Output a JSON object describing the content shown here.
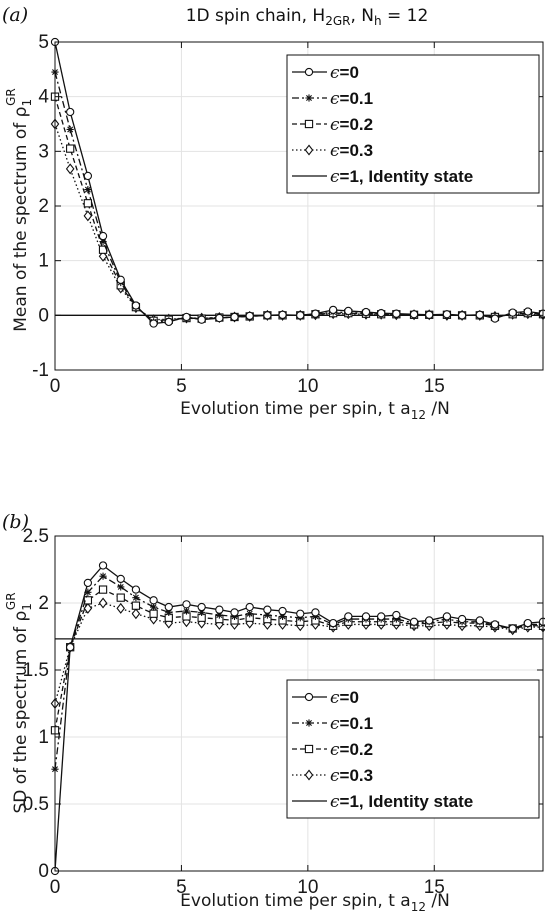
{
  "figure": {
    "panel_a_label": "(a)",
    "panel_b_label": "(b)"
  },
  "chart_data": [
    {
      "type": "line",
      "title": "1D spin chain, H_2GR, N_h = 12",
      "xlabel": "Evolution time per spin, t a_12 /N",
      "ylabel": "Mean of the spectrum of ρ_1^GR",
      "xlim": [
        0,
        19.3
      ],
      "ylim": [
        -1,
        5
      ],
      "xticks": [
        0,
        5,
        10,
        15
      ],
      "yticks": [
        -1,
        0,
        1,
        2,
        3,
        4,
        5
      ],
      "grid": true,
      "legend": "top-right",
      "series": [
        {
          "name": "ϵ=0",
          "marker": "circle",
          "dash": "solid",
          "x": [
            0,
            0.6,
            1.3,
            1.9,
            2.6,
            3.2,
            3.9,
            4.5,
            5.2,
            5.8,
            6.5,
            7.1,
            7.7,
            8.4,
            9.0,
            9.7,
            10.3,
            11.0,
            11.6,
            12.3,
            12.9,
            13.5,
            14.2,
            14.8,
            15.5,
            16.1,
            16.8,
            17.4,
            18.1,
            18.7,
            19.3
          ],
          "y": [
            5.0,
            3.72,
            2.55,
            1.45,
            0.65,
            0.18,
            -0.15,
            -0.12,
            -0.03,
            -0.08,
            -0.05,
            -0.03,
            -0.01,
            0.0,
            0.01,
            0.0,
            0.03,
            0.1,
            0.08,
            0.06,
            0.04,
            0.03,
            0.02,
            0.01,
            0.02,
            0.0,
            0.01,
            -0.06,
            0.05,
            0.07,
            0.03
          ]
        },
        {
          "name": "ϵ=0.1",
          "marker": "star",
          "dash": "dashdot",
          "x": [
            0,
            0.6,
            1.3,
            1.9,
            2.6,
            3.2,
            3.9,
            4.5,
            5.2,
            5.8,
            6.5,
            7.1,
            7.7,
            8.4,
            9.0,
            9.7,
            10.3,
            11.0,
            11.6,
            12.3,
            12.9,
            13.5,
            14.2,
            14.8,
            15.5,
            16.1,
            16.8,
            17.4,
            18.1,
            18.7,
            19.3
          ],
          "y": [
            4.45,
            3.4,
            2.3,
            1.35,
            0.6,
            0.16,
            -0.12,
            -0.1,
            -0.05,
            -0.07,
            -0.05,
            -0.03,
            -0.02,
            0.0,
            0.0,
            0.0,
            0.02,
            0.06,
            0.05,
            0.04,
            0.03,
            0.02,
            0.01,
            0.01,
            0.01,
            0.0,
            0.0,
            -0.04,
            0.03,
            0.05,
            0.02
          ]
        },
        {
          "name": "ϵ=0.2",
          "marker": "square",
          "dash": "dashed",
          "x": [
            0,
            0.6,
            1.3,
            1.9,
            2.6,
            3.2,
            3.9,
            4.5,
            5.2,
            5.8,
            6.5,
            7.1,
            7.7,
            8.4,
            9.0,
            9.7,
            10.3,
            11.0,
            11.6,
            12.3,
            12.9,
            13.5,
            14.2,
            14.8,
            15.5,
            16.1,
            16.8,
            17.4,
            18.1,
            18.7,
            19.3
          ],
          "y": [
            4.0,
            3.05,
            2.05,
            1.2,
            0.55,
            0.15,
            -0.1,
            -0.08,
            -0.05,
            -0.06,
            -0.04,
            -0.03,
            -0.02,
            0.0,
            0.0,
            0.0,
            0.02,
            0.04,
            0.04,
            0.03,
            0.02,
            0.02,
            0.01,
            0.01,
            0.01,
            0.0,
            0.0,
            -0.03,
            0.02,
            0.04,
            0.02
          ]
        },
        {
          "name": "ϵ=0.3",
          "marker": "diamond",
          "dash": "dotted",
          "x": [
            0,
            0.6,
            1.3,
            1.9,
            2.6,
            3.2,
            3.9,
            4.5,
            5.2,
            5.8,
            6.5,
            7.1,
            7.7,
            8.4,
            9.0,
            9.7,
            10.3,
            11.0,
            11.6,
            12.3,
            12.9,
            13.5,
            14.2,
            14.8,
            15.5,
            16.1,
            16.8,
            17.4,
            18.1,
            18.7,
            19.3
          ],
          "y": [
            3.5,
            2.68,
            1.82,
            1.08,
            0.5,
            0.14,
            -0.08,
            -0.07,
            -0.05,
            -0.05,
            -0.04,
            -0.03,
            -0.02,
            0.0,
            0.0,
            0.0,
            0.01,
            0.03,
            0.03,
            0.02,
            0.02,
            0.01,
            0.01,
            0.01,
            0.0,
            0.0,
            0.0,
            -0.02,
            0.02,
            0.03,
            0.01
          ]
        },
        {
          "name": "ϵ=1, Identity state",
          "marker": "none",
          "dash": "solid",
          "x": [
            0,
            19.3
          ],
          "y": [
            0,
            0
          ]
        }
      ]
    },
    {
      "type": "line",
      "title": "",
      "xlabel": "Evolution time per spin, t a_12 /N",
      "ylabel": "SD of the spectrum of ρ_1^GR",
      "xlim": [
        0,
        19.3
      ],
      "ylim": [
        0,
        2.5
      ],
      "xticks": [
        0,
        5,
        10,
        15
      ],
      "yticks": [
        0,
        0.5,
        1,
        1.5,
        2,
        2.5
      ],
      "grid": true,
      "legend": "lower-right",
      "series": [
        {
          "name": "ϵ=0",
          "marker": "circle",
          "dash": "solid",
          "x": [
            0,
            0.6,
            1.3,
            1.9,
            2.6,
            3.2,
            3.9,
            4.5,
            5.2,
            5.8,
            6.5,
            7.1,
            7.7,
            8.4,
            9.0,
            9.7,
            10.3,
            11.0,
            11.6,
            12.3,
            12.9,
            13.5,
            14.2,
            14.8,
            15.5,
            16.1,
            16.8,
            17.4,
            18.1,
            18.7,
            19.3
          ],
          "y": [
            0.0,
            1.67,
            2.15,
            2.28,
            2.18,
            2.1,
            2.02,
            1.97,
            1.99,
            1.97,
            1.95,
            1.93,
            1.97,
            1.95,
            1.94,
            1.92,
            1.93,
            1.85,
            1.9,
            1.9,
            1.9,
            1.91,
            1.86,
            1.87,
            1.9,
            1.88,
            1.87,
            1.84,
            1.81,
            1.85,
            1.86
          ]
        },
        {
          "name": "ϵ=0.1",
          "marker": "star",
          "dash": "dashdot",
          "x": [
            0,
            0.6,
            1.3,
            1.9,
            2.6,
            3.2,
            3.9,
            4.5,
            5.2,
            5.8,
            6.5,
            7.1,
            7.7,
            8.4,
            9.0,
            9.7,
            10.3,
            11.0,
            11.6,
            12.3,
            12.9,
            13.5,
            14.2,
            14.8,
            15.5,
            16.1,
            16.8,
            17.4,
            18.1,
            18.7,
            19.3
          ],
          "y": [
            0.76,
            1.67,
            2.08,
            2.2,
            2.12,
            2.04,
            1.97,
            1.93,
            1.94,
            1.93,
            1.91,
            1.9,
            1.92,
            1.91,
            1.9,
            1.89,
            1.9,
            1.84,
            1.88,
            1.88,
            1.88,
            1.88,
            1.85,
            1.86,
            1.88,
            1.86,
            1.86,
            1.83,
            1.81,
            1.84,
            1.84
          ]
        },
        {
          "name": "ϵ=0.2",
          "marker": "square",
          "dash": "dashed",
          "x": [
            0,
            0.6,
            1.3,
            1.9,
            2.6,
            3.2,
            3.9,
            4.5,
            5.2,
            5.8,
            6.5,
            7.1,
            7.7,
            8.4,
            9.0,
            9.7,
            10.3,
            11.0,
            11.6,
            12.3,
            12.9,
            13.5,
            14.2,
            14.8,
            15.5,
            16.1,
            16.8,
            17.4,
            18.1,
            18.7,
            19.3
          ],
          "y": [
            1.05,
            1.67,
            2.02,
            2.1,
            2.04,
            1.98,
            1.92,
            1.89,
            1.9,
            1.89,
            1.88,
            1.87,
            1.89,
            1.88,
            1.87,
            1.86,
            1.87,
            1.83,
            1.86,
            1.86,
            1.86,
            1.86,
            1.84,
            1.85,
            1.86,
            1.85,
            1.85,
            1.83,
            1.81,
            1.83,
            1.83
          ]
        },
        {
          "name": "ϵ=0.3",
          "marker": "diamond",
          "dash": "dotted",
          "x": [
            0,
            0.6,
            1.3,
            1.9,
            2.6,
            3.2,
            3.9,
            4.5,
            5.2,
            5.8,
            6.5,
            7.1,
            7.7,
            8.4,
            9.0,
            9.7,
            10.3,
            11.0,
            11.6,
            12.3,
            12.9,
            13.5,
            14.2,
            14.8,
            15.5,
            16.1,
            16.8,
            17.4,
            18.1,
            18.7,
            19.3
          ],
          "y": [
            1.25,
            1.67,
            1.96,
            2.0,
            1.96,
            1.92,
            1.88,
            1.85,
            1.86,
            1.85,
            1.84,
            1.84,
            1.85,
            1.84,
            1.84,
            1.83,
            1.84,
            1.82,
            1.84,
            1.84,
            1.84,
            1.84,
            1.83,
            1.83,
            1.84,
            1.83,
            1.83,
            1.82,
            1.8,
            1.82,
            1.82
          ]
        },
        {
          "name": "ϵ=1, Identity state",
          "marker": "none",
          "dash": "solid",
          "x": [
            0,
            19.3
          ],
          "y": [
            1.732,
            1.732
          ]
        }
      ]
    }
  ]
}
